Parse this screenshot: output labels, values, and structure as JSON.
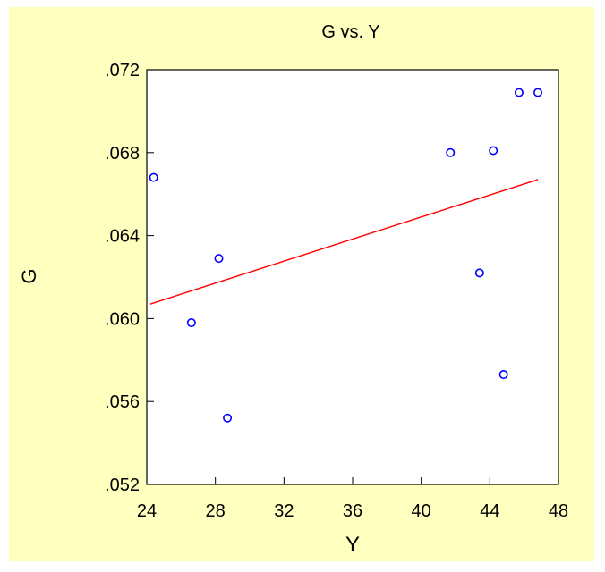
{
  "chart_data": {
    "type": "scatter",
    "title": "G vs. Y",
    "xlabel": "Y",
    "ylabel": "G",
    "xlim": [
      24,
      48
    ],
    "ylim": [
      0.052,
      0.072
    ],
    "x_ticks": [
      24,
      28,
      32,
      36,
      40,
      44,
      48
    ],
    "x_tick_labels": [
      "24",
      "28",
      "32",
      "36",
      "40",
      "44",
      "48"
    ],
    "y_ticks": [
      0.052,
      0.056,
      0.06,
      0.064,
      0.068,
      0.072
    ],
    "y_tick_labels": [
      ".052",
      ".056",
      ".060",
      ".064",
      ".068",
      ".072"
    ],
    "grid": false,
    "points": [
      {
        "x": 24.4,
        "y": 0.0668
      },
      {
        "x": 26.6,
        "y": 0.0598
      },
      {
        "x": 28.2,
        "y": 0.0629
      },
      {
        "x": 28.7,
        "y": 0.0552
      },
      {
        "x": 41.7,
        "y": 0.068
      },
      {
        "x": 43.4,
        "y": 0.0622
      },
      {
        "x": 44.2,
        "y": 0.0681
      },
      {
        "x": 44.8,
        "y": 0.0573
      },
      {
        "x": 45.7,
        "y": 0.0709
      },
      {
        "x": 46.8,
        "y": 0.0709
      }
    ],
    "fit_line": {
      "x": [
        24.2,
        46.8
      ],
      "y": [
        0.0607,
        0.0667
      ]
    },
    "colors": {
      "background": "#FFFFC0",
      "plot_area": "#FFFFFF",
      "points": "#0000FF",
      "fit_line": "#FF0000",
      "axis": "#000000"
    }
  }
}
